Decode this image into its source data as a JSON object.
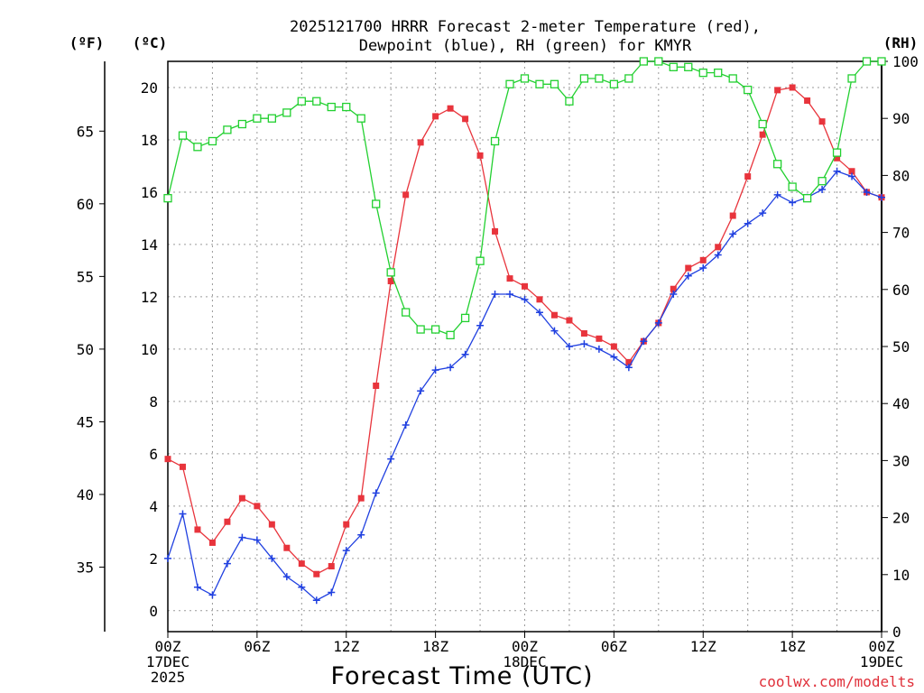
{
  "chart_data": {
    "type": "line",
    "title_line1": "2025121700 HRRR Forecast 2-meter Temperature (red),",
    "title_line2": "Dewpoint (blue), RH (green) for KMYR",
    "left_outer_unit": "(ºF)",
    "left_inner_unit": "(ºC)",
    "right_unit": "(RH)",
    "xlabel": "Forecast Time (UTC)",
    "credit": "coolwx.com/modelts",
    "x_range_hours": [
      0,
      48
    ],
    "celsius_range": [
      -0.8,
      21.0
    ],
    "rh_range": [
      0,
      100
    ],
    "x_ticks": [
      {
        "hour": 0,
        "lines": [
          "00Z",
          "17DEC",
          "2025"
        ]
      },
      {
        "hour": 6,
        "lines": [
          "06Z"
        ]
      },
      {
        "hour": 12,
        "lines": [
          "12Z"
        ]
      },
      {
        "hour": 18,
        "lines": [
          "18Z"
        ]
      },
      {
        "hour": 24,
        "lines": [
          "00Z",
          "18DEC"
        ]
      },
      {
        "hour": 30,
        "lines": [
          "06Z"
        ]
      },
      {
        "hour": 36,
        "lines": [
          "12Z"
        ]
      },
      {
        "hour": 42,
        "lines": [
          "18Z"
        ]
      },
      {
        "hour": 48,
        "lines": [
          "00Z",
          "19DEC"
        ]
      }
    ],
    "celsius_ticks": [
      "0",
      "2",
      "4",
      "6",
      "8",
      "10",
      "12",
      "14",
      "16",
      "18",
      "20"
    ],
    "fahrenheit_ticks": [
      "35",
      "40",
      "45",
      "50",
      "55",
      "60",
      "65"
    ],
    "rh_ticks": [
      "0",
      "10",
      "20",
      "30",
      "40",
      "50",
      "60",
      "70",
      "80",
      "90",
      "100"
    ],
    "grid": true,
    "series": [
      {
        "name": "2-meter Temperature",
        "color": "#e8343c",
        "marker": "filled-square",
        "axis": "celsius",
        "values": [
          5.8,
          5.5,
          3.1,
          2.6,
          3.4,
          4.3,
          4.0,
          3.3,
          2.4,
          1.8,
          1.4,
          1.7,
          3.3,
          4.3,
          8.6,
          12.6,
          15.9,
          17.9,
          18.9,
          19.2,
          18.8,
          17.4,
          14.5,
          12.7,
          12.4,
          11.9,
          11.3,
          11.1,
          10.6,
          10.4,
          10.1,
          9.5,
          10.3,
          11.0,
          12.3,
          13.1,
          13.4,
          13.9,
          15.1,
          16.6,
          18.2,
          19.9,
          20.0,
          19.5,
          18.7,
          17.3,
          16.8,
          16.0,
          15.8
        ]
      },
      {
        "name": "Dewpoint",
        "color": "#2040e0",
        "marker": "plus",
        "axis": "celsius",
        "values": [
          2.0,
          3.7,
          0.9,
          0.6,
          1.8,
          2.8,
          2.7,
          2.0,
          1.3,
          0.9,
          0.4,
          0.7,
          2.3,
          2.9,
          4.5,
          5.8,
          7.1,
          8.4,
          9.2,
          9.3,
          9.8,
          10.9,
          12.1,
          12.1,
          11.9,
          11.4,
          10.7,
          10.1,
          10.2,
          10.0,
          9.7,
          9.3,
          10.3,
          11.0,
          12.1,
          12.8,
          13.1,
          13.6,
          14.4,
          14.8,
          15.2,
          15.9,
          15.6,
          15.8,
          16.1,
          16.8,
          16.6,
          16.0,
          15.8
        ]
      },
      {
        "name": "RH",
        "color": "#22d030",
        "marker": "open-square",
        "axis": "rh",
        "values": [
          76,
          87,
          85,
          86,
          88,
          89,
          90,
          90,
          91,
          93,
          93,
          92,
          92,
          90,
          75,
          63,
          56,
          53,
          53,
          52,
          55,
          65,
          86,
          96,
          97,
          96,
          96,
          93,
          97,
          97,
          96,
          97,
          100,
          100,
          99,
          99,
          98,
          98,
          97,
          95,
          89,
          82,
          78,
          76,
          79,
          84,
          97,
          100,
          100
        ]
      }
    ]
  }
}
